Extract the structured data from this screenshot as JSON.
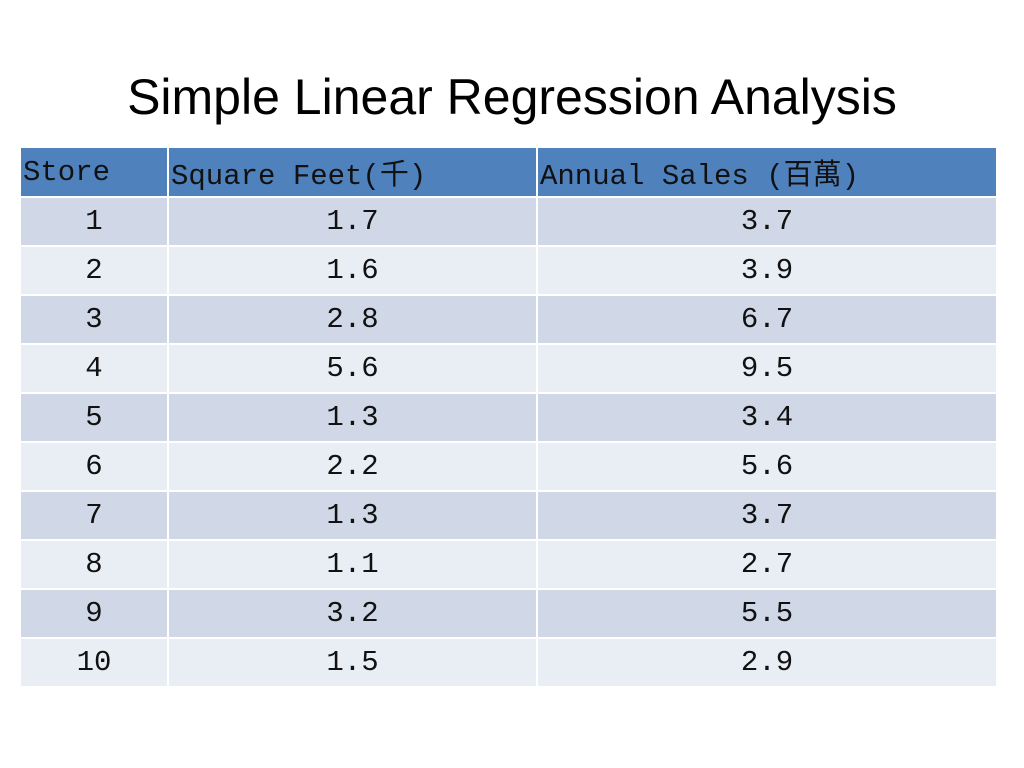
{
  "slide": {
    "title": "Simple Linear Regression Analysis"
  },
  "table": {
    "headers": [
      "Store",
      "Square Feet(千)",
      "Annual Sales (百萬)"
    ],
    "rows": [
      [
        "1",
        "1.7",
        "3.7"
      ],
      [
        "2",
        "1.6",
        "3.9"
      ],
      [
        "3",
        "2.8",
        "6.7"
      ],
      [
        "4",
        "5.6",
        "9.5"
      ],
      [
        "5",
        "1.3",
        "3.4"
      ],
      [
        "6",
        "2.2",
        "5.6"
      ],
      [
        "7",
        "1.3",
        "3.7"
      ],
      [
        "8",
        "1.1",
        "2.7"
      ],
      [
        "9",
        "3.2",
        "5.5"
      ],
      [
        "10",
        "1.5",
        "2.9"
      ]
    ]
  },
  "colors": {
    "header_bg": "#4f81bd",
    "row_odd_bg": "#d0d8e8",
    "row_even_bg": "#e9edf4"
  }
}
